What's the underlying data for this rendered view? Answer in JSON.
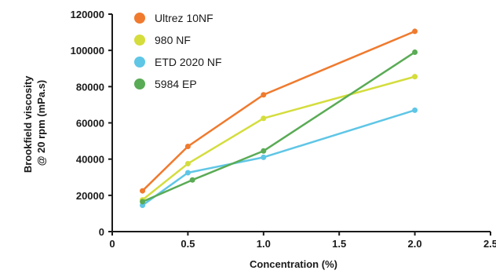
{
  "chart_data": {
    "type": "line",
    "xlabel": "Concentration (%)",
    "ylabel": [
      "Brookfield viscosity",
      "@ 20 rpm (mPa.s)"
    ],
    "xlim": [
      0,
      2.5
    ],
    "ylim": [
      0,
      120000
    ],
    "x_ticks": [
      0,
      0.5,
      1.0,
      1.5,
      2.0,
      2.5
    ],
    "x_tick_labels": [
      "0",
      "0.5",
      "1.0",
      "1.5",
      "2.0",
      "2.5"
    ],
    "y_ticks": [
      0,
      20000,
      40000,
      60000,
      80000,
      100000,
      120000
    ],
    "y_tick_labels": [
      "0",
      "20000",
      "40000",
      "60000",
      "80000",
      "100000",
      "120000"
    ],
    "grid": false,
    "legend_position": "top-left",
    "series": [
      {
        "name": "Ultrez 10NF",
        "color": "#f07a2e",
        "points": [
          [
            0.2,
            22500
          ],
          [
            0.5,
            47000
          ],
          [
            1.0,
            75500
          ],
          [
            2.0,
            110500
          ]
        ]
      },
      {
        "name": "980 NF",
        "color": "#d4dd3c",
        "points": [
          [
            0.2,
            17500
          ],
          [
            0.5,
            37500
          ],
          [
            1.0,
            62500
          ],
          [
            2.0,
            85500
          ]
        ]
      },
      {
        "name": "ETD 2020 NF",
        "color": "#5fc6e6",
        "points": [
          [
            0.2,
            14500
          ],
          [
            0.5,
            32500
          ],
          [
            1.0,
            41000
          ],
          [
            2.0,
            67000
          ]
        ]
      },
      {
        "name": "5984 EP",
        "color": "#5aab55",
        "points": [
          [
            0.2,
            16500
          ],
          [
            0.53,
            28500
          ],
          [
            1.0,
            44500
          ],
          [
            2.0,
            99000
          ]
        ]
      }
    ]
  }
}
